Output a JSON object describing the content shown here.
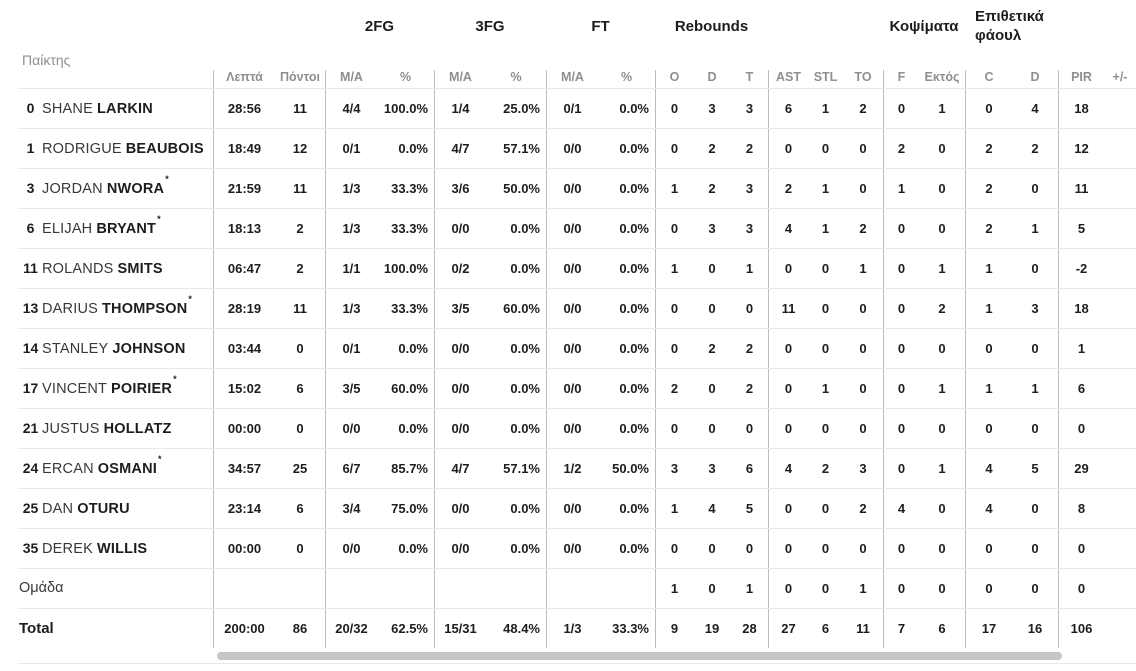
{
  "table": {
    "player_col_header": "Παίκτης",
    "group_headers": {
      "fg2": "2FG",
      "fg3": "3FG",
      "ft": "FT",
      "rebounds": "Rebounds",
      "blocks": "Κοψίματα",
      "offensive_fouls": "Επιθετικά φάουλ"
    },
    "subheaders": [
      "Λεπτά",
      "Πόντοι",
      "M/A",
      "%",
      "M/A",
      "%",
      "M/A",
      "%",
      "O",
      "D",
      "T",
      "AST",
      "STL",
      "TO",
      "F",
      "Εκτός",
      "C",
      "D",
      "PIR",
      "+/-"
    ],
    "starter_mark": "*",
    "rows": [
      {
        "num": "0",
        "first": "SHANE",
        "last": "LARKIN",
        "mark": "",
        "stats": [
          "28:56",
          "11",
          "4/4",
          "100.0%",
          "1/4",
          "25.0%",
          "0/1",
          "0.0%",
          "0",
          "3",
          "3",
          "6",
          "1",
          "2",
          "0",
          "1",
          "0",
          "4",
          "18",
          ""
        ]
      },
      {
        "num": "1",
        "first": "RODRIGUE",
        "last": "BEAUBOIS",
        "mark": "",
        "stats": [
          "18:49",
          "12",
          "0/1",
          "0.0%",
          "4/7",
          "57.1%",
          "0/0",
          "0.0%",
          "0",
          "2",
          "2",
          "0",
          "0",
          "0",
          "2",
          "0",
          "2",
          "2",
          "12",
          ""
        ]
      },
      {
        "num": "3",
        "first": "JORDAN",
        "last": "NWORA",
        "mark": "*",
        "stats": [
          "21:59",
          "11",
          "1/3",
          "33.3%",
          "3/6",
          "50.0%",
          "0/0",
          "0.0%",
          "1",
          "2",
          "3",
          "2",
          "1",
          "0",
          "1",
          "0",
          "2",
          "0",
          "11",
          ""
        ]
      },
      {
        "num": "6",
        "first": "ELIJAH",
        "last": "BRYANT",
        "mark": "*",
        "stats": [
          "18:13",
          "2",
          "1/3",
          "33.3%",
          "0/0",
          "0.0%",
          "0/0",
          "0.0%",
          "0",
          "3",
          "3",
          "4",
          "1",
          "2",
          "0",
          "0",
          "2",
          "1",
          "5",
          ""
        ]
      },
      {
        "num": "11",
        "first": "ROLANDS",
        "last": "SMITS",
        "mark": "",
        "stats": [
          "06:47",
          "2",
          "1/1",
          "100.0%",
          "0/2",
          "0.0%",
          "0/0",
          "0.0%",
          "1",
          "0",
          "1",
          "0",
          "0",
          "1",
          "0",
          "1",
          "1",
          "0",
          "-2",
          ""
        ]
      },
      {
        "num": "13",
        "first": "DARIUS",
        "last": "THOMPSON",
        "mark": "*",
        "stats": [
          "28:19",
          "11",
          "1/3",
          "33.3%",
          "3/5",
          "60.0%",
          "0/0",
          "0.0%",
          "0",
          "0",
          "0",
          "11",
          "0",
          "0",
          "0",
          "2",
          "1",
          "3",
          "18",
          ""
        ]
      },
      {
        "num": "14",
        "first": "STANLEY",
        "last": "JOHNSON",
        "mark": "",
        "stats": [
          "03:44",
          "0",
          "0/1",
          "0.0%",
          "0/0",
          "0.0%",
          "0/0",
          "0.0%",
          "0",
          "2",
          "2",
          "0",
          "0",
          "0",
          "0",
          "0",
          "0",
          "0",
          "1",
          ""
        ]
      },
      {
        "num": "17",
        "first": "VINCENT",
        "last": "POIRIER",
        "mark": "*",
        "stats": [
          "15:02",
          "6",
          "3/5",
          "60.0%",
          "0/0",
          "0.0%",
          "0/0",
          "0.0%",
          "2",
          "0",
          "2",
          "0",
          "1",
          "0",
          "0",
          "1",
          "1",
          "1",
          "6",
          ""
        ]
      },
      {
        "num": "21",
        "first": "JUSTUS",
        "last": "HOLLATZ",
        "mark": "",
        "stats": [
          "00:00",
          "0",
          "0/0",
          "0.0%",
          "0/0",
          "0.0%",
          "0/0",
          "0.0%",
          "0",
          "0",
          "0",
          "0",
          "0",
          "0",
          "0",
          "0",
          "0",
          "0",
          "0",
          ""
        ]
      },
      {
        "num": "24",
        "first": "ERCAN",
        "last": "OSMANI",
        "mark": "*",
        "stats": [
          "34:57",
          "25",
          "6/7",
          "85.7%",
          "4/7",
          "57.1%",
          "1/2",
          "50.0%",
          "3",
          "3",
          "6",
          "4",
          "2",
          "3",
          "0",
          "1",
          "4",
          "5",
          "29",
          ""
        ]
      },
      {
        "num": "25",
        "first": "DAN",
        "last": "OTURU",
        "mark": "",
        "stats": [
          "23:14",
          "6",
          "3/4",
          "75.0%",
          "0/0",
          "0.0%",
          "0/0",
          "0.0%",
          "1",
          "4",
          "5",
          "0",
          "0",
          "2",
          "4",
          "0",
          "4",
          "0",
          "8",
          ""
        ]
      },
      {
        "num": "35",
        "first": "DEREK",
        "last": "WILLIS",
        "mark": "",
        "stats": [
          "00:00",
          "0",
          "0/0",
          "0.0%",
          "0/0",
          "0.0%",
          "0/0",
          "0.0%",
          "0",
          "0",
          "0",
          "0",
          "0",
          "0",
          "0",
          "0",
          "0",
          "0",
          "0",
          ""
        ]
      }
    ],
    "team_row": {
      "label": "Ομάδα",
      "stats": [
        "",
        "",
        "",
        "",
        "",
        "",
        "",
        "",
        "1",
        "0",
        "1",
        "0",
        "0",
        "1",
        "0",
        "0",
        "0",
        "0",
        "0",
        ""
      ]
    },
    "total_row": {
      "label": "Total",
      "stats": [
        "200:00",
        "86",
        "20/32",
        "62.5%",
        "15/31",
        "48.4%",
        "1/3",
        "33.3%",
        "9",
        "19",
        "28",
        "27",
        "6",
        "11",
        "7",
        "6",
        "17",
        "16",
        "106",
        ""
      ]
    }
  },
  "colors": {
    "text": "#1d1d1f",
    "muted_header": "#8e8e93",
    "divider": "#bcbcc0",
    "row_line": "#e9e9eb",
    "scrollbar": "#c6c6c8"
  }
}
